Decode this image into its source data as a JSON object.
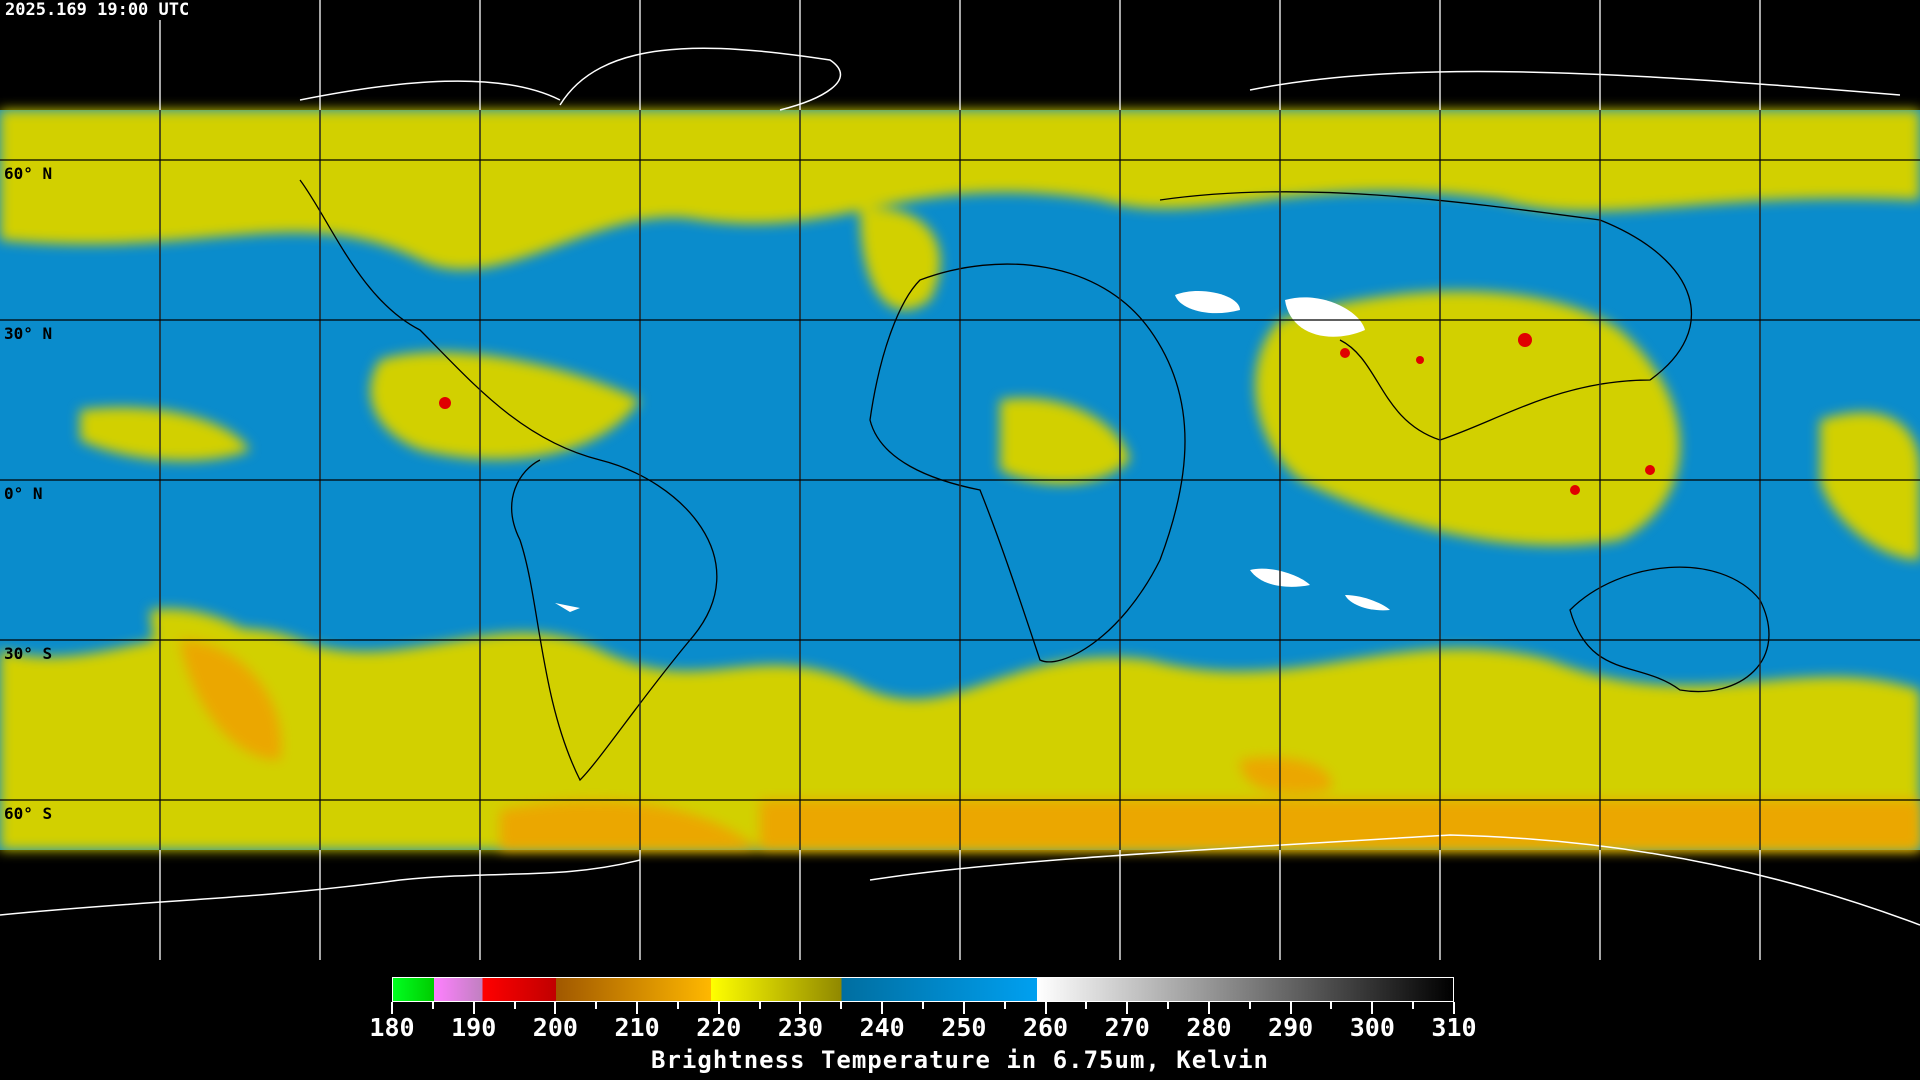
{
  "header": {
    "timestamp": "2025.169 19:00 UTC"
  },
  "map": {
    "projection": "equirectangular",
    "grid_spacing_degrees": 30,
    "lat_labels": [
      "60° N",
      "30° N",
      "0° N",
      "30° S",
      "60° S"
    ],
    "colors": {
      "background_blue": "#0a8ccc",
      "moist_yellow": "#d8d800",
      "cold_orange": "#f0a000",
      "deep_red": "#e00000",
      "dry_white": "#ffffff",
      "no_data": "#000000"
    }
  },
  "colorbar": {
    "min": 180,
    "max": 310,
    "ticks": [
      "180",
      "190",
      "200",
      "210",
      "220",
      "230",
      "240",
      "250",
      "260",
      "270",
      "280",
      "290",
      "300",
      "310"
    ],
    "title": "Brightness Temperature in 6.75um, Kelvin",
    "segments": [
      {
        "from": 180,
        "to": 185,
        "start": "#00ff20",
        "end": "#00cc00"
      },
      {
        "from": 185,
        "to": 191,
        "start": "#ff80ff",
        "end": "#c080c0"
      },
      {
        "from": 191,
        "to": 200,
        "start": "#ff0000",
        "end": "#c00000"
      },
      {
        "from": 200,
        "to": 219,
        "start": "#a05800",
        "end": "#ffb800"
      },
      {
        "from": 219,
        "to": 235,
        "start": "#ffff00",
        "end": "#908800"
      },
      {
        "from": 235,
        "to": 259,
        "start": "#006ea0",
        "end": "#00a0f0"
      },
      {
        "from": 259,
        "to": 310,
        "start": "#ffffff",
        "end": "#000000"
      }
    ]
  }
}
